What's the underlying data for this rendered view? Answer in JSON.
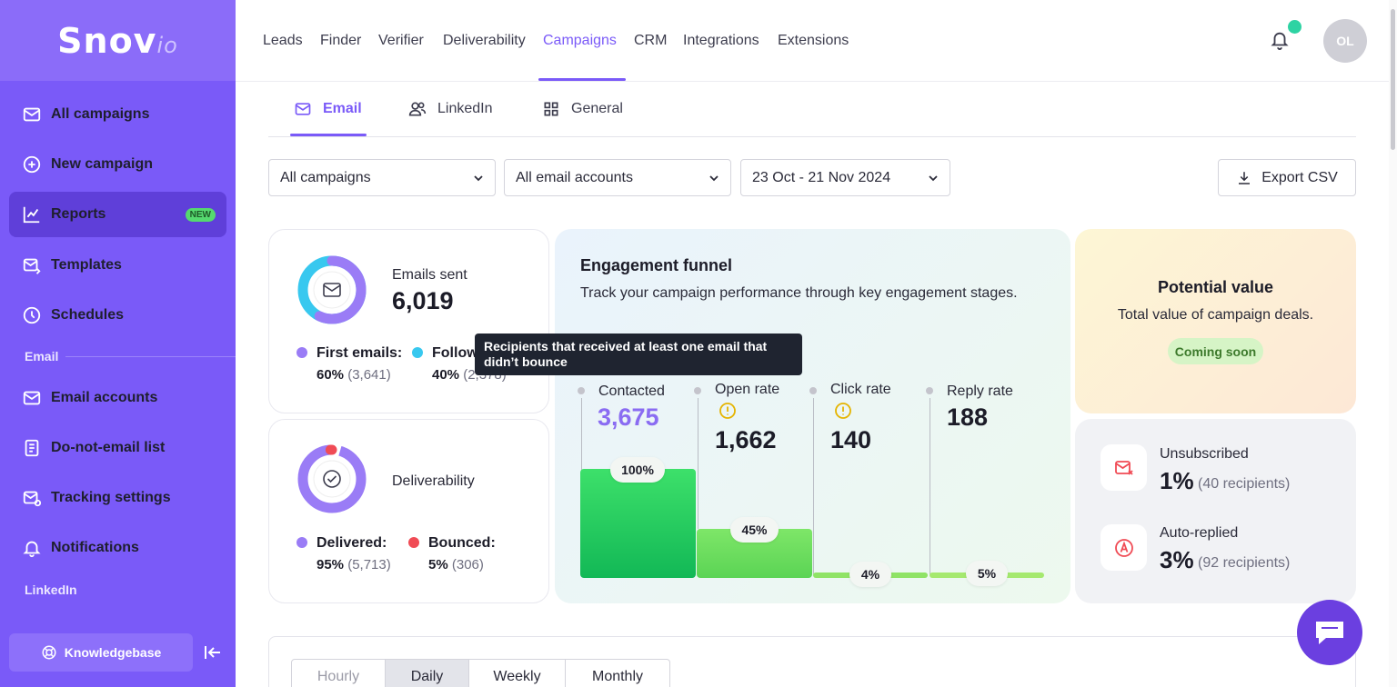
{
  "logo": {
    "main": "Snov",
    "suffix": "io"
  },
  "sidebar": {
    "items": [
      {
        "label": "All campaigns",
        "icon": "mail-icon"
      },
      {
        "label": "New campaign",
        "icon": "plus-circle-icon"
      },
      {
        "label": "Reports",
        "icon": "chart-icon",
        "badge": "NEW"
      },
      {
        "label": "Templates",
        "icon": "template-icon"
      },
      {
        "label": "Schedules",
        "icon": "clock-icon"
      }
    ],
    "section_email": "Email",
    "email_items": [
      {
        "label": "Email accounts",
        "icon": "mail-icon"
      },
      {
        "label": "Do-not-email list",
        "icon": "list-icon"
      },
      {
        "label": "Tracking settings",
        "icon": "mail-settings-icon"
      },
      {
        "label": "Notifications",
        "icon": "bell-icon"
      }
    ],
    "section_linkedin": "LinkedIn",
    "knowledgebase": "Knowledgebase"
  },
  "topnav": {
    "items": [
      "Leads",
      "Finder",
      "Verifier",
      "Deliverability",
      "Campaigns",
      "CRM",
      "Integrations",
      "Extensions"
    ],
    "active": "Campaigns",
    "avatar": "OL"
  },
  "subtabs": {
    "email": "Email",
    "linkedin": "LinkedIn",
    "general": "General"
  },
  "filters": {
    "campaigns": "All campaigns",
    "accounts": "All email accounts",
    "date": "23 Oct - 21 Nov 2024",
    "export": "Export CSV"
  },
  "emails_sent": {
    "label": "Emails sent",
    "value": "6,019",
    "first_label": "First emails:",
    "first_pct": "60%",
    "first_count": "(3,641)",
    "follow_label": "Follow-",
    "follow_pct": "40%",
    "follow_count": "(2,378)",
    "first_fraction": 0.6
  },
  "deliverability": {
    "label": "Deliverability",
    "delivered_label": "Delivered:",
    "delivered_pct": "95%",
    "delivered_count": "(5,713)",
    "bounced_label": "Bounced:",
    "bounced_pct": "5%",
    "bounced_count": "(306)",
    "delivered_fraction": 0.95
  },
  "funnel": {
    "title": "Engagement funnel",
    "subtitle": "Track your campaign performance through key engagement stages.",
    "tooltip": "Recipients that received at least one email that didn’t bounce",
    "stages": [
      {
        "label": "Contacted",
        "value": "3,675",
        "pct": "100%",
        "fraction": 1.0
      },
      {
        "label": "Open rate",
        "value": "1,662",
        "pct": "45%",
        "fraction": 0.45
      },
      {
        "label": "Click rate",
        "value": "140",
        "pct": "4%",
        "fraction": 0.04
      },
      {
        "label": "Reply rate",
        "value": "188",
        "pct": "5%",
        "fraction": 0.05
      }
    ]
  },
  "potential": {
    "title": "Potential value",
    "subtitle": "Total value of campaign deals.",
    "badge": "Coming soon"
  },
  "unsubscribed": {
    "label": "Unsubscribed",
    "pct": "1%",
    "count": "(40 recipients)"
  },
  "autoreplied": {
    "label": "Auto-replied",
    "pct": "3%",
    "count": "(92 recipients)"
  },
  "periods": {
    "hourly": "Hourly",
    "daily": "Daily",
    "weekly": "Weekly",
    "monthly": "Monthly"
  },
  "colors": {
    "accent": "#7a5af8",
    "cyan": "#38c8ef",
    "red": "#f04b55",
    "green": "#2ecc6a"
  }
}
